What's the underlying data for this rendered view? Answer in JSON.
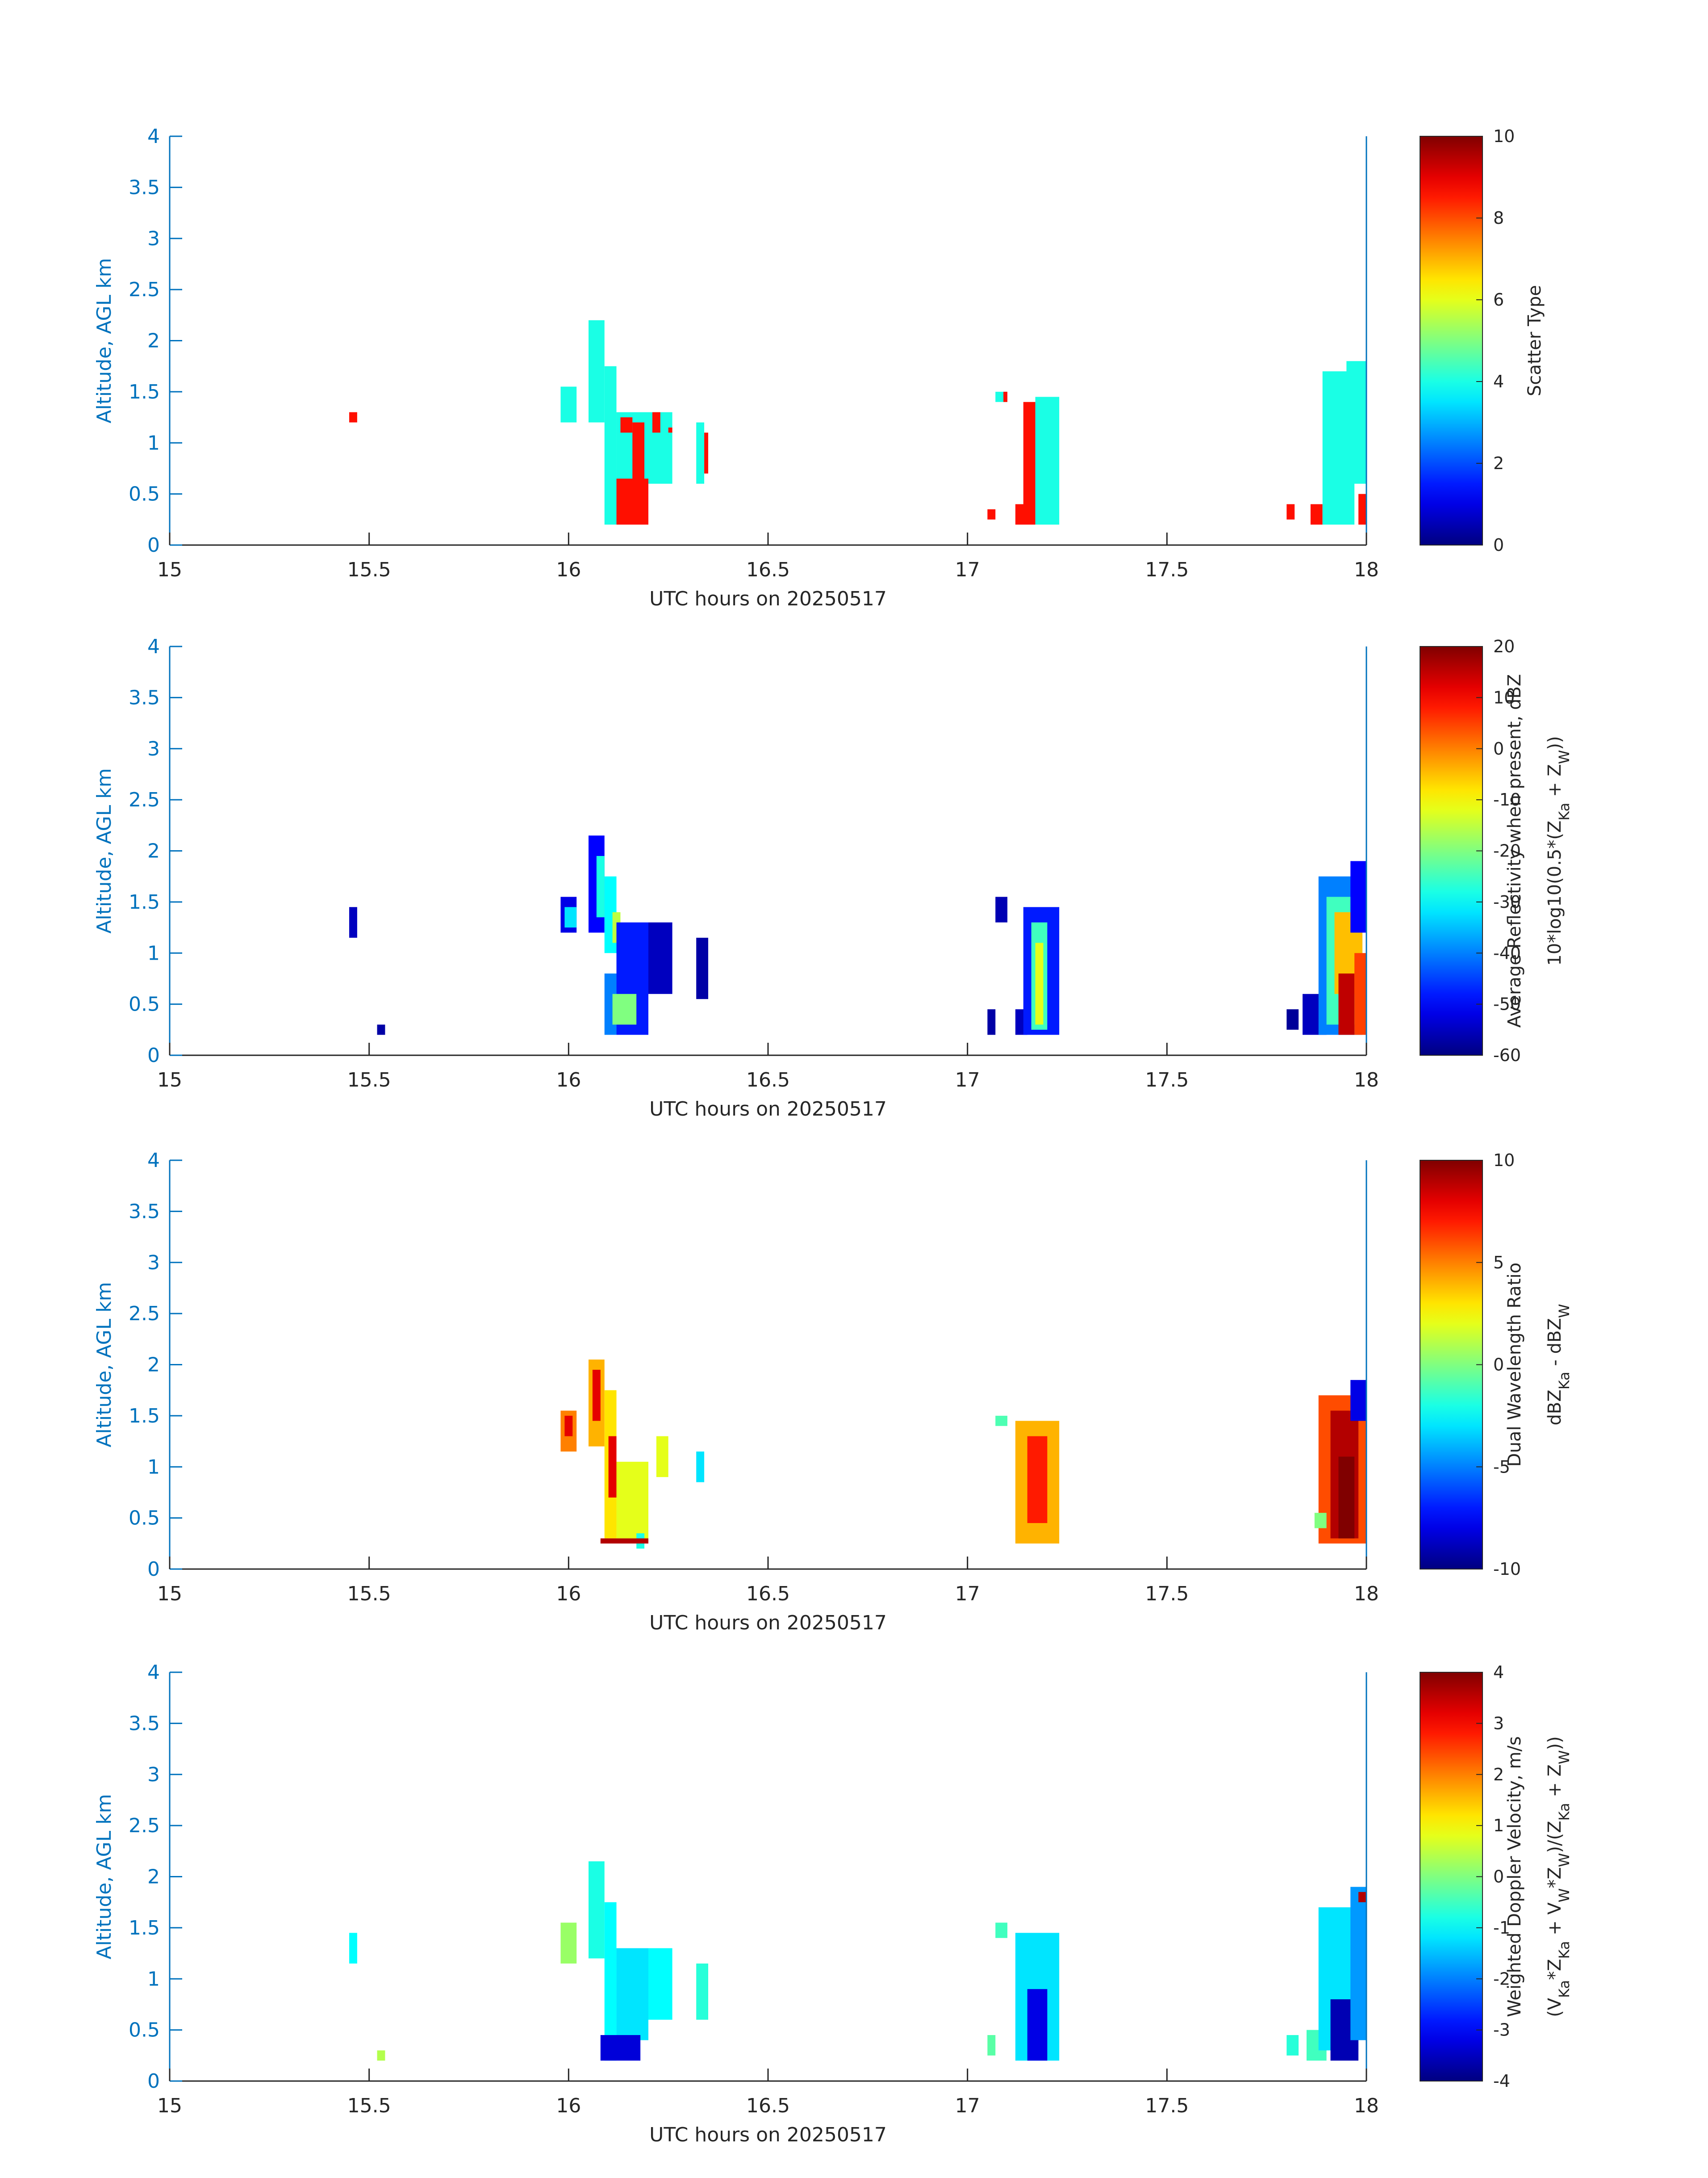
{
  "figure": {
    "background": "#ffffff",
    "axis_color": "#0072BD",
    "label_color": "#262626",
    "colormap": "jet"
  },
  "chart_data": [
    {
      "type": "heatmap",
      "title": "",
      "xlabel": "UTC hours on 20250517",
      "ylabel": "Altitude, AGL km",
      "xlim": [
        15,
        18
      ],
      "ylim": [
        0,
        4
      ],
      "xticks": [
        "15",
        "15.5",
        "16",
        "16.5",
        "17",
        "17.5",
        "18"
      ],
      "yticks": [
        "0",
        "0.5",
        "1",
        "1.5",
        "2",
        "2.5",
        "3",
        "3.5",
        "4"
      ],
      "colorbar": {
        "label_lines": [
          "Scatter Type"
        ],
        "range": [
          0,
          10
        ],
        "ticks": [
          "0",
          "2",
          "4",
          "6",
          "8",
          "10"
        ]
      },
      "cells": [
        {
          "x": [
            15.45,
            15.47
          ],
          "y": [
            1.2,
            1.3
          ],
          "value": 8.6
        },
        {
          "x": [
            15.98,
            16.02
          ],
          "y": [
            1.2,
            1.55
          ],
          "value": 4.0
        },
        {
          "x": [
            16.05,
            16.09
          ],
          "y": [
            1.2,
            2.2
          ],
          "value": 4.0
        },
        {
          "x": [
            16.09,
            16.12
          ],
          "y": [
            0.2,
            1.75
          ],
          "value": 4.0
        },
        {
          "x": [
            16.12,
            16.2
          ],
          "y": [
            0.6,
            1.3
          ],
          "value": 4.0
        },
        {
          "x": [
            16.12,
            16.2
          ],
          "y": [
            0.2,
            0.65
          ],
          "value": 8.6
        },
        {
          "x": [
            16.13,
            16.16
          ],
          "y": [
            1.1,
            1.25
          ],
          "value": 8.6
        },
        {
          "x": [
            16.16,
            16.19
          ],
          "y": [
            0.35,
            1.2
          ],
          "value": 8.6
        },
        {
          "x": [
            16.2,
            16.26
          ],
          "y": [
            0.6,
            1.3
          ],
          "value": 4.0
        },
        {
          "x": [
            16.21,
            16.23
          ],
          "y": [
            1.1,
            1.3
          ],
          "value": 8.6
        },
        {
          "x": [
            16.25,
            16.26
          ],
          "y": [
            1.1,
            1.15
          ],
          "value": 8.6
        },
        {
          "x": [
            16.32,
            16.34
          ],
          "y": [
            0.6,
            1.2
          ],
          "value": 4.0
        },
        {
          "x": [
            16.34,
            16.35
          ],
          "y": [
            0.7,
            1.1
          ],
          "value": 8.6
        },
        {
          "x": [
            17.05,
            17.07
          ],
          "y": [
            0.25,
            0.35
          ],
          "value": 8.6
        },
        {
          "x": [
            17.07,
            17.1
          ],
          "y": [
            1.4,
            1.5
          ],
          "value": 4.0
        },
        {
          "x": [
            17.09,
            17.1
          ],
          "y": [
            1.4,
            1.5
          ],
          "value": 8.6
        },
        {
          "x": [
            17.12,
            17.17
          ],
          "y": [
            0.2,
            0.4
          ],
          "value": 8.6
        },
        {
          "x": [
            17.14,
            17.17
          ],
          "y": [
            0.4,
            1.4
          ],
          "value": 8.6
        },
        {
          "x": [
            17.17,
            17.23
          ],
          "y": [
            0.2,
            1.45
          ],
          "value": 4.0
        },
        {
          "x": [
            17.8,
            17.82
          ],
          "y": [
            0.25,
            0.4
          ],
          "value": 8.6
        },
        {
          "x": [
            17.86,
            17.89
          ],
          "y": [
            0.2,
            0.4
          ],
          "value": 8.6
        },
        {
          "x": [
            17.89,
            17.97
          ],
          "y": [
            0.2,
            1.7
          ],
          "value": 4.0
        },
        {
          "x": [
            17.95,
            18.0
          ],
          "y": [
            0.6,
            1.8
          ],
          "value": 4.0
        },
        {
          "x": [
            17.98,
            18.0
          ],
          "y": [
            0.2,
            0.5
          ],
          "value": 8.6
        }
      ]
    },
    {
      "type": "heatmap",
      "title": "",
      "xlabel": "UTC hours on 20250517",
      "ylabel": "Altitude, AGL km",
      "xlim": [
        15,
        18
      ],
      "ylim": [
        0,
        4
      ],
      "xticks": [
        "15",
        "15.5",
        "16",
        "16.5",
        "17",
        "17.5",
        "18"
      ],
      "yticks": [
        "0",
        "0.5",
        "1",
        "1.5",
        "2",
        "2.5",
        "3",
        "3.5",
        "4"
      ],
      "colorbar": {
        "label_lines": [
          "Average Reflectivity when present, dBZ",
          "10*log10(0.5*(Z_Ka + Z_W))"
        ],
        "range": [
          -60,
          20
        ],
        "ticks": [
          "-60",
          "-50",
          "-40",
          "-30",
          "-20",
          "-10",
          "0",
          "10",
          "20"
        ]
      },
      "cells": [
        {
          "x": [
            15.45,
            15.47
          ],
          "y": [
            1.15,
            1.45
          ],
          "value": -55
        },
        {
          "x": [
            15.52,
            15.54
          ],
          "y": [
            0.2,
            0.3
          ],
          "value": -57
        },
        {
          "x": [
            15.98,
            16.02
          ],
          "y": [
            1.2,
            1.55
          ],
          "value": -52
        },
        {
          "x": [
            15.99,
            16.02
          ],
          "y": [
            1.25,
            1.45
          ],
          "value": -32
        },
        {
          "x": [
            16.05,
            16.09
          ],
          "y": [
            1.2,
            2.15
          ],
          "value": -50
        },
        {
          "x": [
            16.07,
            16.09
          ],
          "y": [
            1.35,
            1.95
          ],
          "value": -28
        },
        {
          "x": [
            16.09,
            16.12
          ],
          "y": [
            1.0,
            1.75
          ],
          "value": -30
        },
        {
          "x": [
            16.11,
            16.13
          ],
          "y": [
            1.1,
            1.4
          ],
          "value": -15
        },
        {
          "x": [
            16.12,
            16.2
          ],
          "y": [
            0.2,
            1.3
          ],
          "value": -48
        },
        {
          "x": [
            16.09,
            16.12
          ],
          "y": [
            0.2,
            0.8
          ],
          "value": -40
        },
        {
          "x": [
            16.11,
            16.17
          ],
          "y": [
            0.3,
            0.6
          ],
          "value": -20
        },
        {
          "x": [
            16.2,
            16.26
          ],
          "y": [
            0.6,
            1.3
          ],
          "value": -55
        },
        {
          "x": [
            16.32,
            16.35
          ],
          "y": [
            0.55,
            1.15
          ],
          "value": -57
        },
        {
          "x": [
            17.05,
            17.07
          ],
          "y": [
            0.2,
            0.45
          ],
          "value": -57
        },
        {
          "x": [
            17.07,
            17.1
          ],
          "y": [
            1.3,
            1.55
          ],
          "value": -56
        },
        {
          "x": [
            17.12,
            17.15
          ],
          "y": [
            0.2,
            0.45
          ],
          "value": -55
        },
        {
          "x": [
            17.14,
            17.23
          ],
          "y": [
            0.2,
            1.45
          ],
          "value": -48
        },
        {
          "x": [
            17.16,
            17.2
          ],
          "y": [
            0.25,
            1.3
          ],
          "value": -25
        },
        {
          "x": [
            17.17,
            17.19
          ],
          "y": [
            0.3,
            1.1
          ],
          "value": -12
        },
        {
          "x": [
            17.8,
            17.83
          ],
          "y": [
            0.25,
            0.45
          ],
          "value": -58
        },
        {
          "x": [
            17.84,
            17.9
          ],
          "y": [
            0.2,
            0.6
          ],
          "value": -55
        },
        {
          "x": [
            17.88,
            17.99
          ],
          "y": [
            0.2,
            1.75
          ],
          "value": -40
        },
        {
          "x": [
            17.9,
            17.98
          ],
          "y": [
            0.3,
            1.55
          ],
          "value": -25
        },
        {
          "x": [
            17.92,
            17.99
          ],
          "y": [
            0.6,
            1.4
          ],
          "value": -5
        },
        {
          "x": [
            17.93,
            17.97
          ],
          "y": [
            0.2,
            0.8
          ],
          "value": 15
        },
        {
          "x": [
            17.96,
            18.0
          ],
          "y": [
            1.2,
            1.9
          ],
          "value": -50
        },
        {
          "x": [
            17.97,
            18.0
          ],
          "y": [
            0.2,
            1.0
          ],
          "value": 5
        }
      ]
    },
    {
      "type": "heatmap",
      "title": "",
      "xlabel": "UTC hours on 20250517",
      "ylabel": "Altitude, AGL km",
      "xlim": [
        15,
        18
      ],
      "ylim": [
        0,
        4
      ],
      "xticks": [
        "15",
        "15.5",
        "16",
        "16.5",
        "17",
        "17.5",
        "18"
      ],
      "yticks": [
        "0",
        "0.5",
        "1",
        "1.5",
        "2",
        "2.5",
        "3",
        "3.5",
        "4"
      ],
      "colorbar": {
        "label_lines": [
          "Dual Wavelength Ratio",
          "dBZ_Ka - dBZ_W"
        ],
        "range": [
          -10,
          10
        ],
        "ticks": [
          "-10",
          "-5",
          "0",
          "5",
          "10"
        ]
      },
      "cells": [
        {
          "x": [
            15.98,
            16.02
          ],
          "y": [
            1.15,
            1.55
          ],
          "value": 5
        },
        {
          "x": [
            15.99,
            16.01
          ],
          "y": [
            1.3,
            1.5
          ],
          "value": 8
        },
        {
          "x": [
            16.05,
            16.09
          ],
          "y": [
            1.2,
            2.05
          ],
          "value": 4
        },
        {
          "x": [
            16.06,
            16.08
          ],
          "y": [
            1.45,
            1.95
          ],
          "value": 8
        },
        {
          "x": [
            16.09,
            16.12
          ],
          "y": [
            0.3,
            1.75
          ],
          "value": 3
        },
        {
          "x": [
            16.1,
            16.12
          ],
          "y": [
            0.7,
            1.3
          ],
          "value": 8
        },
        {
          "x": [
            16.12,
            16.2
          ],
          "y": [
            0.3,
            1.05
          ],
          "value": 2
        },
        {
          "x": [
            16.17,
            16.19
          ],
          "y": [
            0.2,
            0.35
          ],
          "value": -2
        },
        {
          "x": [
            16.08,
            16.2
          ],
          "y": [
            0.25,
            0.3
          ],
          "value": 9
        },
        {
          "x": [
            16.22,
            16.25
          ],
          "y": [
            0.9,
            1.3
          ],
          "value": 2
        },
        {
          "x": [
            16.32,
            16.34
          ],
          "y": [
            0.85,
            1.15
          ],
          "value": -3
        },
        {
          "x": [
            17.07,
            17.1
          ],
          "y": [
            1.4,
            1.5
          ],
          "value": -1
        },
        {
          "x": [
            17.12,
            17.23
          ],
          "y": [
            0.25,
            1.45
          ],
          "value": 4
        },
        {
          "x": [
            17.15,
            17.2
          ],
          "y": [
            0.45,
            1.3
          ],
          "value": 7
        },
        {
          "x": [
            17.88,
            18.0
          ],
          "y": [
            0.25,
            1.7
          ],
          "value": 6
        },
        {
          "x": [
            17.91,
            17.98
          ],
          "y": [
            0.3,
            1.55
          ],
          "value": 9
        },
        {
          "x": [
            17.93,
            17.97
          ],
          "y": [
            0.3,
            1.1
          ],
          "value": 10
        },
        {
          "x": [
            17.96,
            18.0
          ],
          "y": [
            1.45,
            1.85
          ],
          "value": -8
        },
        {
          "x": [
            17.87,
            17.9
          ],
          "y": [
            0.4,
            0.55
          ],
          "value": 0
        }
      ]
    },
    {
      "type": "heatmap",
      "title": "",
      "xlabel": "UTC hours on 20250517",
      "ylabel": "Altitude, AGL km",
      "xlim": [
        15,
        18
      ],
      "ylim": [
        0,
        4
      ],
      "xticks": [
        "15",
        "15.5",
        "16",
        "16.5",
        "17",
        "17.5",
        "18"
      ],
      "yticks": [
        "0",
        "0.5",
        "1",
        "1.5",
        "2",
        "2.5",
        "3",
        "3.5",
        "4"
      ],
      "colorbar": {
        "label_lines": [
          "Weighted Doppler Velocity, m/s",
          "(V_Ka*Z_Ka + V_W*Z_W)/(Z_Ka + Z_W))"
        ],
        "range": [
          -4,
          4
        ],
        "ticks": [
          "-4",
          "-3",
          "-2",
          "-1",
          "0",
          "1",
          "2",
          "3",
          "4"
        ]
      },
      "cells": [
        {
          "x": [
            15.45,
            15.47
          ],
          "y": [
            1.15,
            1.45
          ],
          "value": -1.0
        },
        {
          "x": [
            15.52,
            15.54
          ],
          "y": [
            0.2,
            0.3
          ],
          "value": 0.4
        },
        {
          "x": [
            15.98,
            16.02
          ],
          "y": [
            1.15,
            1.55
          ],
          "value": 0.2
        },
        {
          "x": [
            16.05,
            16.09
          ],
          "y": [
            1.2,
            2.15
          ],
          "value": -0.8
        },
        {
          "x": [
            16.09,
            16.12
          ],
          "y": [
            0.2,
            1.75
          ],
          "value": -1.0
        },
        {
          "x": [
            16.12,
            16.2
          ],
          "y": [
            0.4,
            1.3
          ],
          "value": -1.2
        },
        {
          "x": [
            16.08,
            16.18
          ],
          "y": [
            0.2,
            0.45
          ],
          "value": -3.3
        },
        {
          "x": [
            16.2,
            16.26
          ],
          "y": [
            0.6,
            1.3
          ],
          "value": -1.0
        },
        {
          "x": [
            16.32,
            16.35
          ],
          "y": [
            0.6,
            1.15
          ],
          "value": -0.7
        },
        {
          "x": [
            17.05,
            17.07
          ],
          "y": [
            0.25,
            0.45
          ],
          "value": -0.3
        },
        {
          "x": [
            17.07,
            17.1
          ],
          "y": [
            1.4,
            1.55
          ],
          "value": -0.5
        },
        {
          "x": [
            17.12,
            17.23
          ],
          "y": [
            0.2,
            1.45
          ],
          "value": -1.2
        },
        {
          "x": [
            17.15,
            17.2
          ],
          "y": [
            0.2,
            0.9
          ],
          "value": -3.2
        },
        {
          "x": [
            17.8,
            17.83
          ],
          "y": [
            0.25,
            0.45
          ],
          "value": -0.7
        },
        {
          "x": [
            17.85,
            17.9
          ],
          "y": [
            0.2,
            0.5
          ],
          "value": -0.5
        },
        {
          "x": [
            17.88,
            17.98
          ],
          "y": [
            0.3,
            1.7
          ],
          "value": -1.2
        },
        {
          "x": [
            17.91,
            17.98
          ],
          "y": [
            0.2,
            0.8
          ],
          "value": -3.6
        },
        {
          "x": [
            17.96,
            18.0
          ],
          "y": [
            0.4,
            1.9
          ],
          "value": -1.8
        },
        {
          "x": [
            17.98,
            18.0
          ],
          "y": [
            1.75,
            1.85
          ],
          "value": 3.6
        }
      ]
    }
  ]
}
